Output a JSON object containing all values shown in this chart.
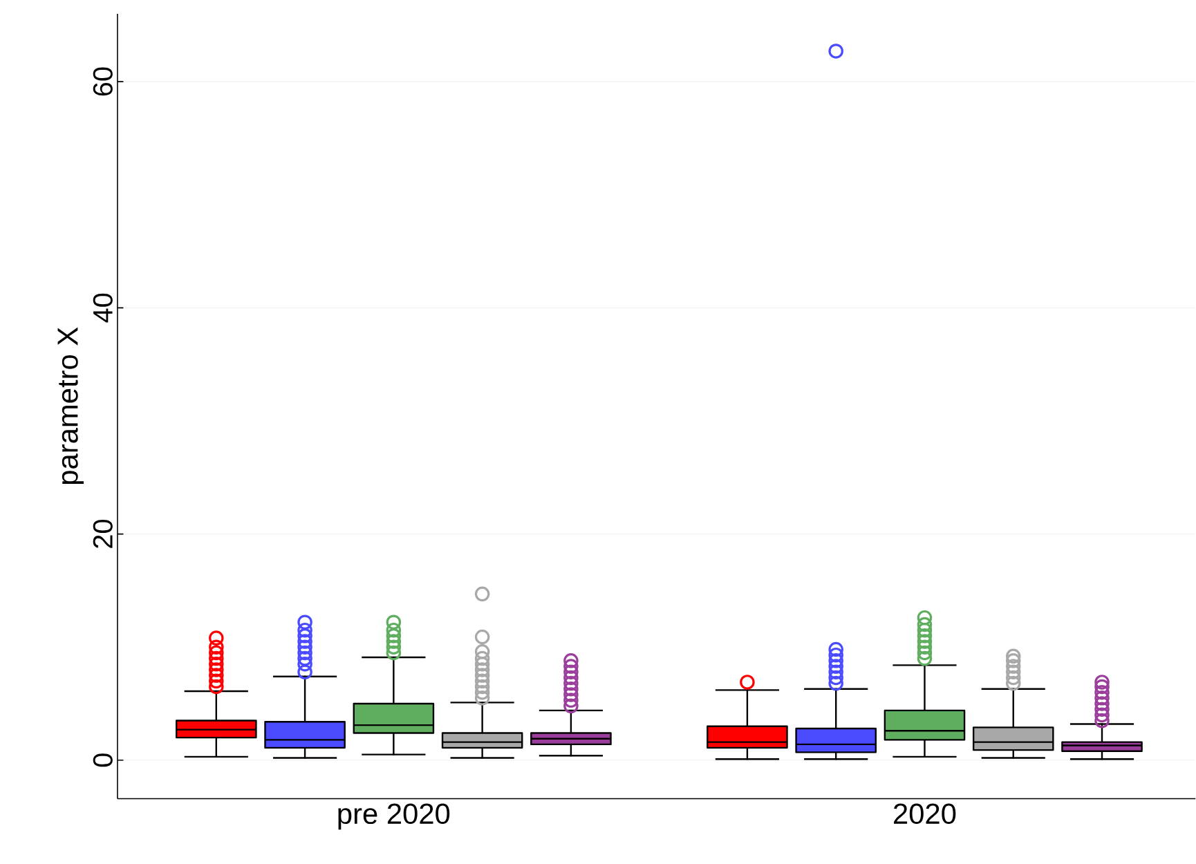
{
  "chart_data": {
    "type": "box",
    "ylabel": "parametro X",
    "categories": [
      "pre 2020",
      "2020"
    ],
    "ylim": [
      -3.4,
      66
    ],
    "yticks": [
      0,
      20,
      40,
      60
    ],
    "grid": "y",
    "marker": "circle",
    "series": [
      {
        "color": "#ff0000",
        "boxes": [
          {
            "low": 0.3,
            "q1": 2.0,
            "median": 2.7,
            "q3": 3.5,
            "high": 6.1,
            "outliers": [
              6.5,
              7,
              7.5,
              8,
              8.5,
              9,
              9.5,
              10,
              10.8
            ]
          },
          {
            "low": 0.1,
            "q1": 1.1,
            "median": 1.6,
            "q3": 3.0,
            "high": 6.2,
            "outliers": [
              6.9
            ]
          }
        ]
      },
      {
        "color": "#4a4aff",
        "boxes": [
          {
            "low": 0.2,
            "q1": 1.1,
            "median": 1.8,
            "q3": 3.4,
            "high": 7.4,
            "outliers": [
              7.8,
              8.5,
              9,
              9.5,
              10,
              10.5,
              11,
              11.5,
              12.2
            ]
          },
          {
            "low": 0.1,
            "q1": 0.7,
            "median": 1.4,
            "q3": 2.8,
            "high": 6.3,
            "outliers": [
              6.8,
              7.3,
              7.8,
              8.3,
              8.8,
              9.3,
              9.8,
              62.7
            ]
          }
        ]
      },
      {
        "color": "#5fae5f",
        "boxes": [
          {
            "low": 0.5,
            "q1": 2.4,
            "median": 3.1,
            "q3": 5.0,
            "high": 9.1,
            "outliers": [
              9.5,
              10,
              10.5,
              11,
              11.5,
              12.2
            ]
          },
          {
            "low": 0.3,
            "q1": 1.8,
            "median": 2.6,
            "q3": 4.4,
            "high": 8.4,
            "outliers": [
              9.0,
              9.5,
              10,
              10.5,
              11,
              11.5,
              12,
              12.6
            ]
          }
        ]
      },
      {
        "color": "#a8a8a8",
        "boxes": [
          {
            "low": 0.2,
            "q1": 1.1,
            "median": 1.6,
            "q3": 2.4,
            "high": 5.1,
            "outliers": [
              5.5,
              6,
              6.5,
              7,
              7.5,
              8,
              8.5,
              9,
              9.6,
              10.9,
              14.7
            ]
          },
          {
            "low": 0.2,
            "q1": 0.9,
            "median": 1.6,
            "q3": 2.9,
            "high": 6.3,
            "outliers": [
              6.8,
              7.3,
              7.8,
              8.3,
              8.8,
              9.2
            ]
          }
        ]
      },
      {
        "color": "#9b3d9b",
        "boxes": [
          {
            "low": 0.4,
            "q1": 1.4,
            "median": 1.9,
            "q3": 2.4,
            "high": 4.4,
            "outliers": [
              4.8,
              5.3,
              5.8,
              6.3,
              6.8,
              7.3,
              7.8,
              8.3,
              8.8
            ]
          },
          {
            "low": 0.1,
            "q1": 0.8,
            "median": 1.3,
            "q3": 1.6,
            "high": 3.2,
            "outliers": [
              3.5,
              4,
              4.5,
              5,
              5.5,
              6,
              6.5,
              6.9
            ]
          }
        ]
      }
    ]
  }
}
